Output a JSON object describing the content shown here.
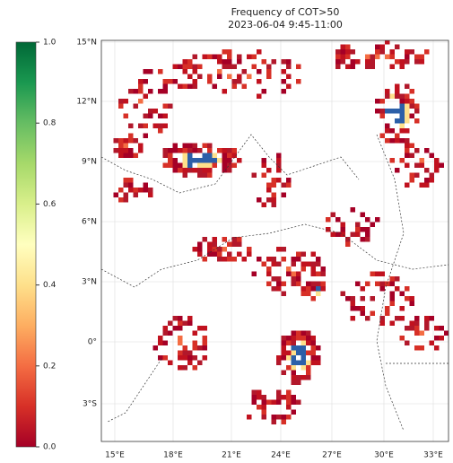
{
  "title_lines": [
    "Frequency of COT>50",
    "2023-06-04 9:45-11:00"
  ],
  "colorbar": {
    "clim": [
      0,
      1
    ],
    "ticks": [
      {
        "value": 1.0,
        "label": "1.0"
      },
      0.8,
      0.6,
      0.4,
      0.2,
      {
        "value": 0.0,
        "label": "0.0"
      }
    ]
  },
  "lat_labels": [
    "15°N",
    "12°N",
    "9°N",
    "6°N",
    "3°N",
    "0°",
    "3°S"
  ],
  "lon_labels": [
    "15°E",
    "18°E",
    "21°E",
    "24°E",
    "27°E",
    "30°E",
    "33°E"
  ]
}
